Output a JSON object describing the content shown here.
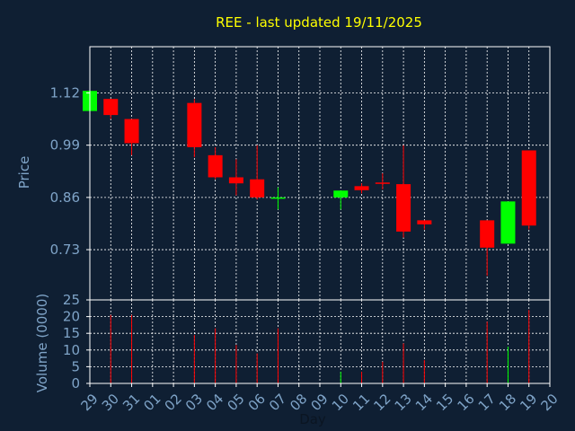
{
  "chart_data": {
    "type": "candlestick",
    "title": "REE - last updated 19/11/2025",
    "xlabel": "Day",
    "days": [
      "29",
      "30",
      "31",
      "01",
      "02",
      "03",
      "04",
      "05",
      "06",
      "07",
      "08",
      "09",
      "10",
      "11",
      "12",
      "13",
      "14",
      "15",
      "16",
      "17",
      "18",
      "19",
      "20"
    ],
    "price": {
      "ylabel": "Price",
      "yticks": [
        "0.73",
        "0.86",
        "0.99",
        "1.12"
      ],
      "ytick_values": [
        0.73,
        0.86,
        0.99,
        1.12
      ],
      "ylim": [
        0.605,
        1.235
      ],
      "colors": {
        "up": "#00ff00",
        "down": "#ff0000"
      },
      "candles": [
        {
          "day": "29",
          "open": 1.075,
          "close": 1.125,
          "high": 1.125,
          "low": 1.075
        },
        {
          "day": "30",
          "open": 1.105,
          "close": 1.065,
          "high": 1.105,
          "low": 1.055
        },
        {
          "day": "31",
          "open": 1.055,
          "close": 0.995,
          "high": 1.055,
          "low": 0.965
        },
        {
          "day": "03",
          "open": 1.095,
          "close": 0.985,
          "high": 1.105,
          "low": 0.96
        },
        {
          "day": "04",
          "open": 0.965,
          "close": 0.91,
          "high": 0.985,
          "low": 0.905
        },
        {
          "day": "05",
          "open": 0.91,
          "close": 0.895,
          "high": 0.955,
          "low": 0.865
        },
        {
          "day": "06",
          "open": 0.905,
          "close": 0.86,
          "high": 0.99,
          "low": 0.855
        },
        {
          "day": "07",
          "open": 0.86,
          "close": 0.86,
          "high": 0.885,
          "low": 0.83
        },
        {
          "day": "10",
          "open": 0.86,
          "close": 0.877,
          "high": 0.877,
          "low": 0.83
        },
        {
          "day": "11",
          "open": 0.888,
          "close": 0.878,
          "high": 0.895,
          "low": 0.87
        },
        {
          "day": "12",
          "open": 0.897,
          "close": 0.895,
          "high": 0.92,
          "low": 0.88
        },
        {
          "day": "13",
          "open": 0.893,
          "close": 0.775,
          "high": 0.99,
          "low": 0.76
        },
        {
          "day": "14",
          "open": 0.803,
          "close": 0.793,
          "high": 0.803,
          "low": 0.78
        },
        {
          "day": "17",
          "open": 0.803,
          "close": 0.735,
          "high": 0.803,
          "low": 0.665
        },
        {
          "day": "18",
          "open": 0.745,
          "close": 0.85,
          "high": 0.85,
          "low": 0.745
        },
        {
          "day": "19",
          "open": 0.977,
          "close": 0.79,
          "high": 0.977,
          "low": 0.78
        }
      ]
    },
    "volume": {
      "ylabel": "Volume (0000)",
      "yticks": [
        "0",
        "5",
        "10",
        "15",
        "20",
        "25"
      ],
      "ytick_values": [
        0,
        5,
        10,
        15,
        20,
        25
      ],
      "ylim": [
        0,
        25
      ],
      "bars": [
        {
          "day": "30",
          "value": 20.5,
          "direction": "down"
        },
        {
          "day": "31",
          "value": 20.5,
          "direction": "down"
        },
        {
          "day": "03",
          "value": 14.5,
          "direction": "down"
        },
        {
          "day": "04",
          "value": 16.5,
          "direction": "down"
        },
        {
          "day": "05",
          "value": 11.5,
          "direction": "down"
        },
        {
          "day": "06",
          "value": 9.0,
          "direction": "down"
        },
        {
          "day": "07",
          "value": 16.5,
          "direction": "down"
        },
        {
          "day": "10",
          "value": 3.5,
          "direction": "up"
        },
        {
          "day": "11",
          "value": 3.5,
          "direction": "down"
        },
        {
          "day": "12",
          "value": 6.5,
          "direction": "down"
        },
        {
          "day": "13",
          "value": 12.0,
          "direction": "down"
        },
        {
          "day": "14",
          "value": 7.0,
          "direction": "down"
        },
        {
          "day": "17",
          "value": 18.5,
          "direction": "down"
        },
        {
          "day": "18",
          "value": 11.0,
          "direction": "up"
        },
        {
          "day": "19",
          "value": 22.0,
          "direction": "down"
        }
      ]
    },
    "grid": true
  }
}
